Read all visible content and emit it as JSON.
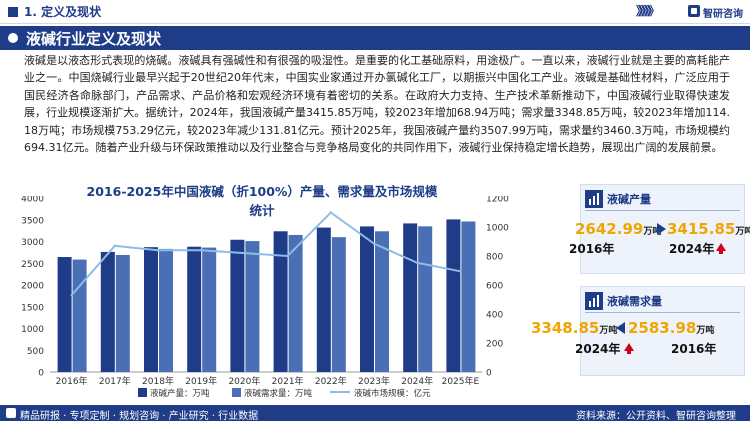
{
  "header": {
    "section": "1. 定义及现状",
    "brand": "智研咨询",
    "chevrons": "》》》》》"
  },
  "banner": {
    "title": "液碱行业定义及现状"
  },
  "paragraph": "液碱是以液态形式表现的烧碱。液碱具有强碱性和有很强的吸湿性。是重要的化工基础原料，用途极广。一直以来，液碱行业就是主要的高耗能产业之一。中国烧碱行业最早兴起于20世纪20年代末，中国实业家通过开办氯碱化工厂，以期振兴中国化工产业。液碱是基础性材料，广泛应用于国民经济各命脉部门，产品需求、产品价格和宏观经济环境有着密切的关系。在政府大力支持、生产技术革新推动下，中国液碱行业取得快速发展，行业规模逐渐扩大。据统计，2024年，我国液碱产量3415.85万吨，较2023年增加68.94万吨；需求量3348.85万吨，较2023年增加114.18万吨；市场规模753.29亿元，较2023年减少131.81亿元。预计2025年，我国液碱产量约3507.99万吨，需求量约3460.3万吨，市场规模约694.31亿元。随着产业升级与环保政策推动以及行业整合与竞争格局变化的共同作用下，液碱行业保持稳定增长趋势，展现出广阔的发展前景。",
  "chart_data": {
    "type": "bar",
    "title": "2016-2025年中国液碱（折100%）产量、需求量及市场规模统计",
    "categories": [
      "2016年",
      "2017年",
      "2018年",
      "2019年",
      "2020年",
      "2021年",
      "2022年",
      "2023年",
      "2024年",
      "2025年E"
    ],
    "series": [
      {
        "name": "液碱产量：万吨",
        "axis": "left",
        "kind": "bar",
        "values": [
          2642.99,
          2760,
          2870,
          2880,
          3040,
          3235,
          3320,
          3347,
          3415.85,
          3507.99
        ]
      },
      {
        "name": "液碱需求量：万吨",
        "axis": "left",
        "kind": "bar",
        "values": [
          2583.98,
          2690,
          2830,
          2860,
          3010,
          3150,
          3100,
          3235,
          3348.85,
          3460.3
        ]
      },
      {
        "name": "液碱市场规模：亿元",
        "axis": "right",
        "kind": "line",
        "values": [
          530,
          870,
          840,
          840,
          820,
          800,
          1100,
          885,
          753.29,
          694.31
        ]
      }
    ],
    "left_axis": {
      "ylim": [
        0,
        4000
      ],
      "ticks": [
        "0",
        "500",
        "1000",
        "1500",
        "2000",
        "2500",
        "3000",
        "3500",
        "4000"
      ]
    },
    "right_axis": {
      "ylim": [
        0,
        1200
      ],
      "ticks": [
        "0",
        "200",
        "400",
        "600",
        "800",
        "1000",
        "1200"
      ]
    },
    "legend_position": "bottom",
    "grid": false
  },
  "cards": {
    "production": {
      "label": "液碱产量",
      "from_value": "2642.99",
      "from_unit": "万吨",
      "from_year": "2016年",
      "to_value": "3415.85",
      "to_unit": "万吨",
      "to_year": "2024年"
    },
    "demand": {
      "label": "液碱需求量",
      "left_value": "3348.85",
      "left_unit": "万吨",
      "left_year": "2024年",
      "right_value": "2583.98",
      "right_unit": "万吨",
      "right_year": "2016年"
    }
  },
  "footer": {
    "left": "精品研报 · 专项定制 · 规划咨询 · 产业研究 · 行业数据",
    "right": "资料来源：公开资料、智研咨询整理"
  },
  "colors": {
    "primary": "#1f3c88",
    "bar_production": "#1f3c88",
    "bar_demand": "#4a6fb5",
    "line_market": "#8fbce6",
    "highlight": "#f0a500",
    "up_arrow": "#d0021b"
  }
}
